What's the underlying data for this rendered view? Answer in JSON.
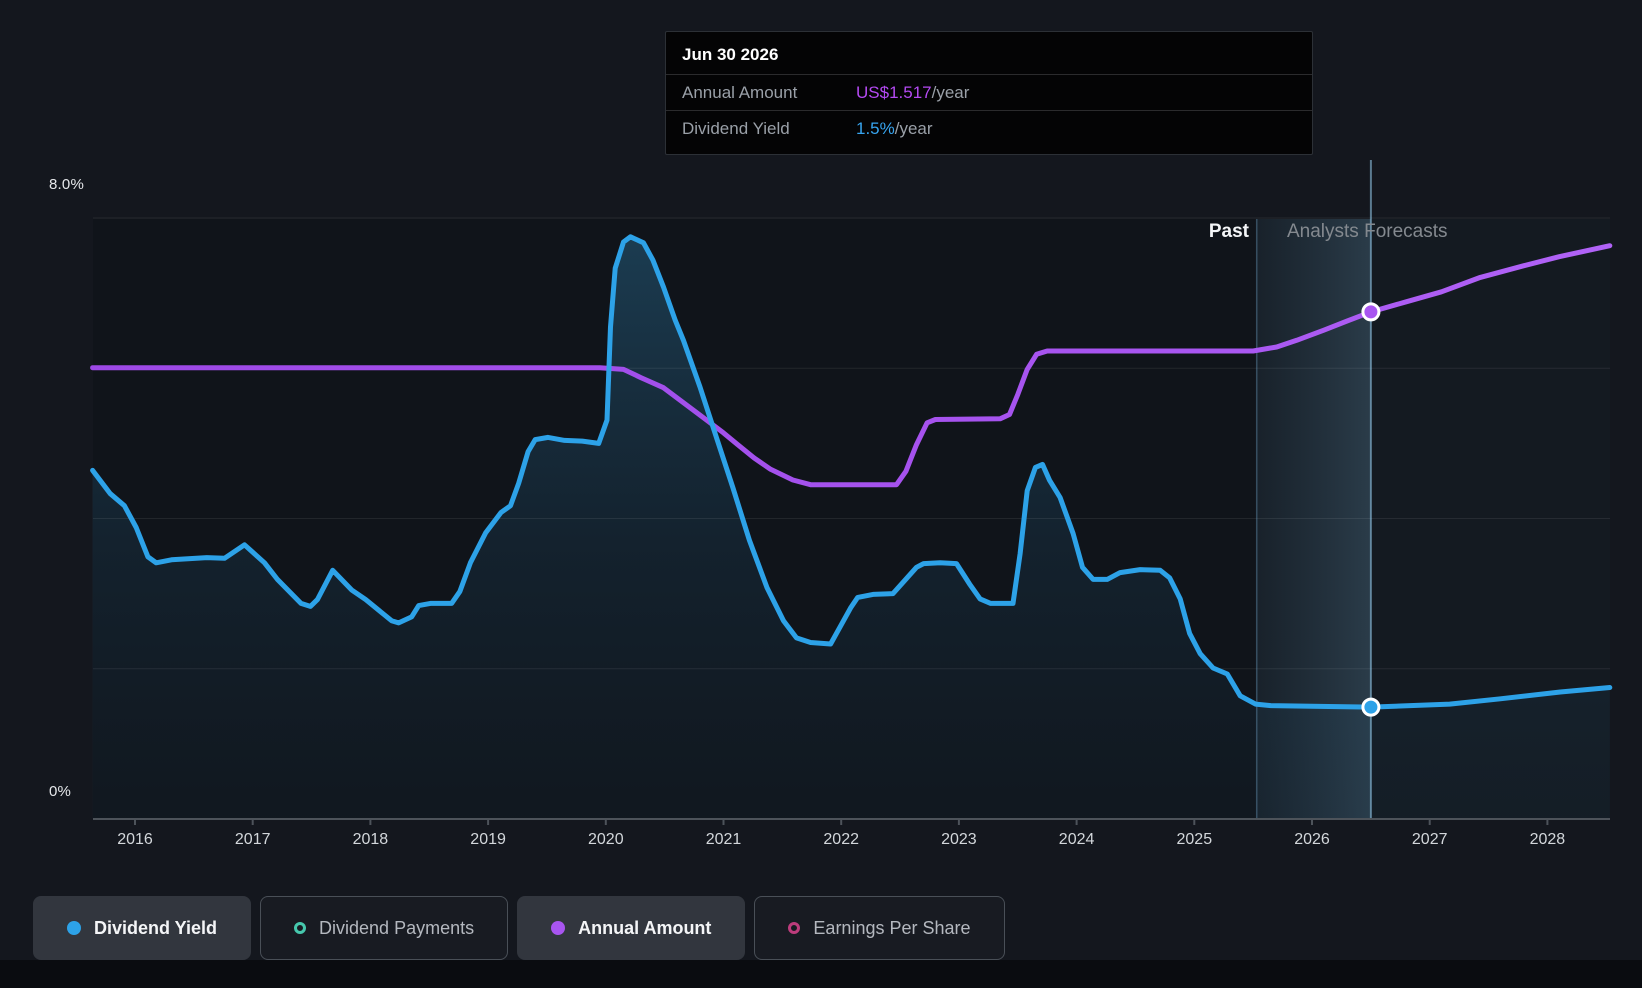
{
  "tooltip": {
    "date": "Jun 30 2026",
    "rows": [
      {
        "label": "Annual Amount",
        "value": "US$1.517",
        "suffix": "/year",
        "value_color": "#b44af2"
      },
      {
        "label": "Dividend Yield",
        "value": "1.5%",
        "suffix": "/year",
        "value_color": "#37a5f0"
      }
    ]
  },
  "labels": {
    "past": "Past",
    "forecast": "Analysts Forecasts",
    "y_top": "8.0%",
    "y_bottom": "0%"
  },
  "legend": [
    {
      "label": "Dividend Yield",
      "color": "#2da2e8",
      "marker": "filled",
      "selected": true
    },
    {
      "label": "Dividend Payments",
      "color": "#46c8ad",
      "marker": "ring",
      "selected": false
    },
    {
      "label": "Annual Amount",
      "color": "#a855f0",
      "marker": "filled",
      "selected": true
    },
    {
      "label": "Earnings Per Share",
      "color": "#bd3c7c",
      "marker": "ring",
      "selected": false
    }
  ],
  "chart_data": {
    "type": "line",
    "title": "Dividend yield history and analysts forecasts with annual dividend amount",
    "x_ticks": [
      "2016",
      "2017",
      "2018",
      "2019",
      "2020",
      "2021",
      "2022",
      "2023",
      "2024",
      "2025",
      "2026",
      "2027",
      "2028"
    ],
    "x_tick_years": [
      2016,
      2017,
      2018,
      2019,
      2020,
      2021,
      2022,
      2023,
      2024,
      2025,
      2026,
      2027,
      2028
    ],
    "x_range": [
      2015.62,
      2028.55
    ],
    "y_axis": {
      "unit": "%",
      "range": [
        0,
        8
      ],
      "gridline_values": [
        2,
        4,
        6,
        8
      ],
      "labeled_values": {
        "8": "8.0%",
        "0": "0%"
      },
      "grid": true
    },
    "divider_year": 2025.53,
    "highlight": {
      "date": "Jun 30 2026",
      "year": 2026.5
    },
    "legend_position": "bottom-left",
    "series": [
      {
        "name": "Dividend Yield",
        "color": "#2da2e8",
        "unit": "%",
        "marker_point": [
          2026.5,
          1.49
        ],
        "points": [
          [
            2015.64,
            4.64
          ],
          [
            2015.79,
            4.33
          ],
          [
            2015.91,
            4.17
          ],
          [
            2016.01,
            3.88
          ],
          [
            2016.11,
            3.49
          ],
          [
            2016.18,
            3.41
          ],
          [
            2016.31,
            3.45
          ],
          [
            2016.61,
            3.48
          ],
          [
            2016.76,
            3.47
          ],
          [
            2016.93,
            3.65
          ],
          [
            2017.1,
            3.41
          ],
          [
            2017.21,
            3.19
          ],
          [
            2017.41,
            2.87
          ],
          [
            2017.49,
            2.83
          ],
          [
            2017.55,
            2.92
          ],
          [
            2017.68,
            3.31
          ],
          [
            2017.84,
            3.05
          ],
          [
            2017.96,
            2.92
          ],
          [
            2018.18,
            2.64
          ],
          [
            2018.24,
            2.61
          ],
          [
            2018.35,
            2.69
          ],
          [
            2018.41,
            2.84
          ],
          [
            2018.51,
            2.87
          ],
          [
            2018.69,
            2.87
          ],
          [
            2018.76,
            3.03
          ],
          [
            2018.85,
            3.41
          ],
          [
            2018.98,
            3.81
          ],
          [
            2019.11,
            4.08
          ],
          [
            2019.19,
            4.17
          ],
          [
            2019.26,
            4.47
          ],
          [
            2019.34,
            4.89
          ],
          [
            2019.4,
            5.05
          ],
          [
            2019.51,
            5.08
          ],
          [
            2019.65,
            5.04
          ],
          [
            2019.8,
            5.03
          ],
          [
            2019.94,
            5.0
          ],
          [
            2020.01,
            5.31
          ],
          [
            2020.04,
            6.55
          ],
          [
            2020.08,
            7.33
          ],
          [
            2020.15,
            7.68
          ],
          [
            2020.21,
            7.75
          ],
          [
            2020.32,
            7.67
          ],
          [
            2020.4,
            7.44
          ],
          [
            2020.49,
            7.08
          ],
          [
            2020.59,
            6.64
          ],
          [
            2020.66,
            6.37
          ],
          [
            2020.8,
            5.75
          ],
          [
            2020.94,
            5.08
          ],
          [
            2021.08,
            4.41
          ],
          [
            2021.22,
            3.71
          ],
          [
            2021.37,
            3.08
          ],
          [
            2021.51,
            2.64
          ],
          [
            2021.62,
            2.41
          ],
          [
            2021.74,
            2.35
          ],
          [
            2021.91,
            2.33
          ],
          [
            2022.08,
            2.81
          ],
          [
            2022.14,
            2.95
          ],
          [
            2022.27,
            2.99
          ],
          [
            2022.44,
            3.0
          ],
          [
            2022.56,
            3.21
          ],
          [
            2022.64,
            3.35
          ],
          [
            2022.7,
            3.4
          ],
          [
            2022.84,
            3.41
          ],
          [
            2022.98,
            3.4
          ],
          [
            2023.09,
            3.13
          ],
          [
            2023.18,
            2.93
          ],
          [
            2023.27,
            2.87
          ],
          [
            2023.46,
            2.87
          ],
          [
            2023.52,
            3.53
          ],
          [
            2023.58,
            4.37
          ],
          [
            2023.65,
            4.68
          ],
          [
            2023.71,
            4.72
          ],
          [
            2023.77,
            4.51
          ],
          [
            2023.86,
            4.28
          ],
          [
            2023.97,
            3.8
          ],
          [
            2024.05,
            3.35
          ],
          [
            2024.14,
            3.19
          ],
          [
            2024.26,
            3.19
          ],
          [
            2024.37,
            3.28
          ],
          [
            2024.54,
            3.32
          ],
          [
            2024.71,
            3.31
          ],
          [
            2024.79,
            3.21
          ],
          [
            2024.88,
            2.93
          ],
          [
            2024.96,
            2.47
          ],
          [
            2025.05,
            2.2
          ],
          [
            2025.16,
            2.01
          ],
          [
            2025.28,
            1.93
          ],
          [
            2025.39,
            1.64
          ],
          [
            2025.52,
            1.53
          ],
          [
            2025.65,
            1.51
          ],
          [
            2026.0,
            1.5
          ],
          [
            2026.5,
            1.49
          ],
          [
            2027.17,
            1.53
          ],
          [
            2027.6,
            1.6
          ],
          [
            2028.11,
            1.69
          ],
          [
            2028.53,
            1.75
          ]
        ]
      },
      {
        "name": "Annual Amount",
        "color": "#a855f0",
        "unit": "US$/year",
        "usd_to_pct_axis_scale": 4.45,
        "marker_point": [
          2026.5,
          1.517
        ],
        "points": [
          [
            2015.64,
            1.35
          ],
          [
            2019.95,
            1.35
          ],
          [
            2020.15,
            1.345
          ],
          [
            2020.3,
            1.32
          ],
          [
            2020.49,
            1.29
          ],
          [
            2020.66,
            1.245
          ],
          [
            2020.83,
            1.2
          ],
          [
            2021.0,
            1.155
          ],
          [
            2021.12,
            1.12
          ],
          [
            2021.26,
            1.08
          ],
          [
            2021.4,
            1.046
          ],
          [
            2021.59,
            1.014
          ],
          [
            2021.74,
            1.0
          ],
          [
            2022.47,
            1.0
          ],
          [
            2022.55,
            1.04
          ],
          [
            2022.64,
            1.12
          ],
          [
            2022.73,
            1.185
          ],
          [
            2022.8,
            1.195
          ],
          [
            2023.35,
            1.197
          ],
          [
            2023.43,
            1.21
          ],
          [
            2023.5,
            1.27
          ],
          [
            2023.58,
            1.345
          ],
          [
            2023.66,
            1.39
          ],
          [
            2023.75,
            1.4
          ],
          [
            2025.5,
            1.4
          ],
          [
            2025.7,
            1.412
          ],
          [
            2025.87,
            1.432
          ],
          [
            2026.1,
            1.462
          ],
          [
            2026.3,
            1.49
          ],
          [
            2026.5,
            1.517
          ],
          [
            2026.8,
            1.547
          ],
          [
            2027.1,
            1.577
          ],
          [
            2027.43,
            1.62
          ],
          [
            2027.8,
            1.655
          ],
          [
            2028.1,
            1.682
          ],
          [
            2028.53,
            1.715
          ]
        ]
      }
    ]
  }
}
